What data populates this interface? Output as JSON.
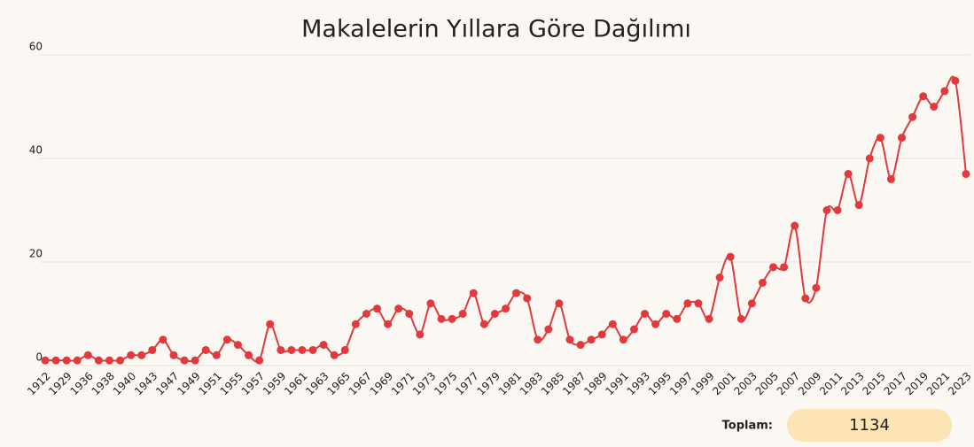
{
  "chart_data": {
    "type": "line",
    "title": "Makalelerin Yıllara Göre Dağılımı",
    "categories": [
      "1912",
      null,
      "1929",
      null,
      "1936",
      null,
      "1938",
      null,
      "1940",
      null,
      "1943",
      null,
      "1947",
      null,
      "1949",
      null,
      "1951",
      null,
      "1955",
      null,
      "1957",
      null,
      "1959",
      null,
      "1961",
      null,
      "1963",
      null,
      "1965",
      null,
      "1967",
      null,
      "1969",
      null,
      "1971",
      null,
      "1973",
      null,
      "1975",
      null,
      "1977",
      null,
      "1979",
      null,
      "1981",
      null,
      "1983",
      null,
      "1985",
      null,
      "1987",
      null,
      "1989",
      null,
      "1991",
      null,
      "1993",
      null,
      "1995",
      null,
      "1997",
      null,
      "1999",
      null,
      "2001",
      null,
      "2003",
      null,
      "2005",
      null,
      "2007",
      null,
      "2009",
      null,
      "2011",
      null,
      "2013",
      null,
      "2015",
      null,
      "2017",
      null,
      "2019",
      null,
      "2021",
      null,
      "2023"
    ],
    "series": [
      {
        "color": "#e0393e",
        "values": [
          1,
          1,
          1,
          1,
          2,
          1,
          1,
          1,
          2,
          2,
          3,
          5,
          2,
          1,
          1,
          3,
          2,
          5,
          4,
          2,
          1,
          8,
          3,
          3,
          3,
          3,
          4,
          2,
          3,
          8,
          10,
          11,
          8,
          11,
          10,
          6,
          12,
          9,
          9,
          10,
          14,
          8,
          10,
          11,
          14,
          13,
          5,
          7,
          12,
          5,
          4,
          5,
          6,
          8,
          5,
          7,
          10,
          8,
          10,
          9,
          12,
          12,
          9,
          17,
          21,
          9,
          12,
          16,
          19,
          19,
          27,
          13,
          15,
          30,
          30,
          37,
          31,
          40,
          44,
          36,
          44,
          48,
          52,
          50,
          53,
          55,
          37
        ]
      }
    ],
    "ylim": [
      0,
      60
    ],
    "yticks": [
      0,
      20,
      40,
      60
    ],
    "grid": true
  },
  "total": {
    "label": "Toplam:",
    "value": 1134
  }
}
